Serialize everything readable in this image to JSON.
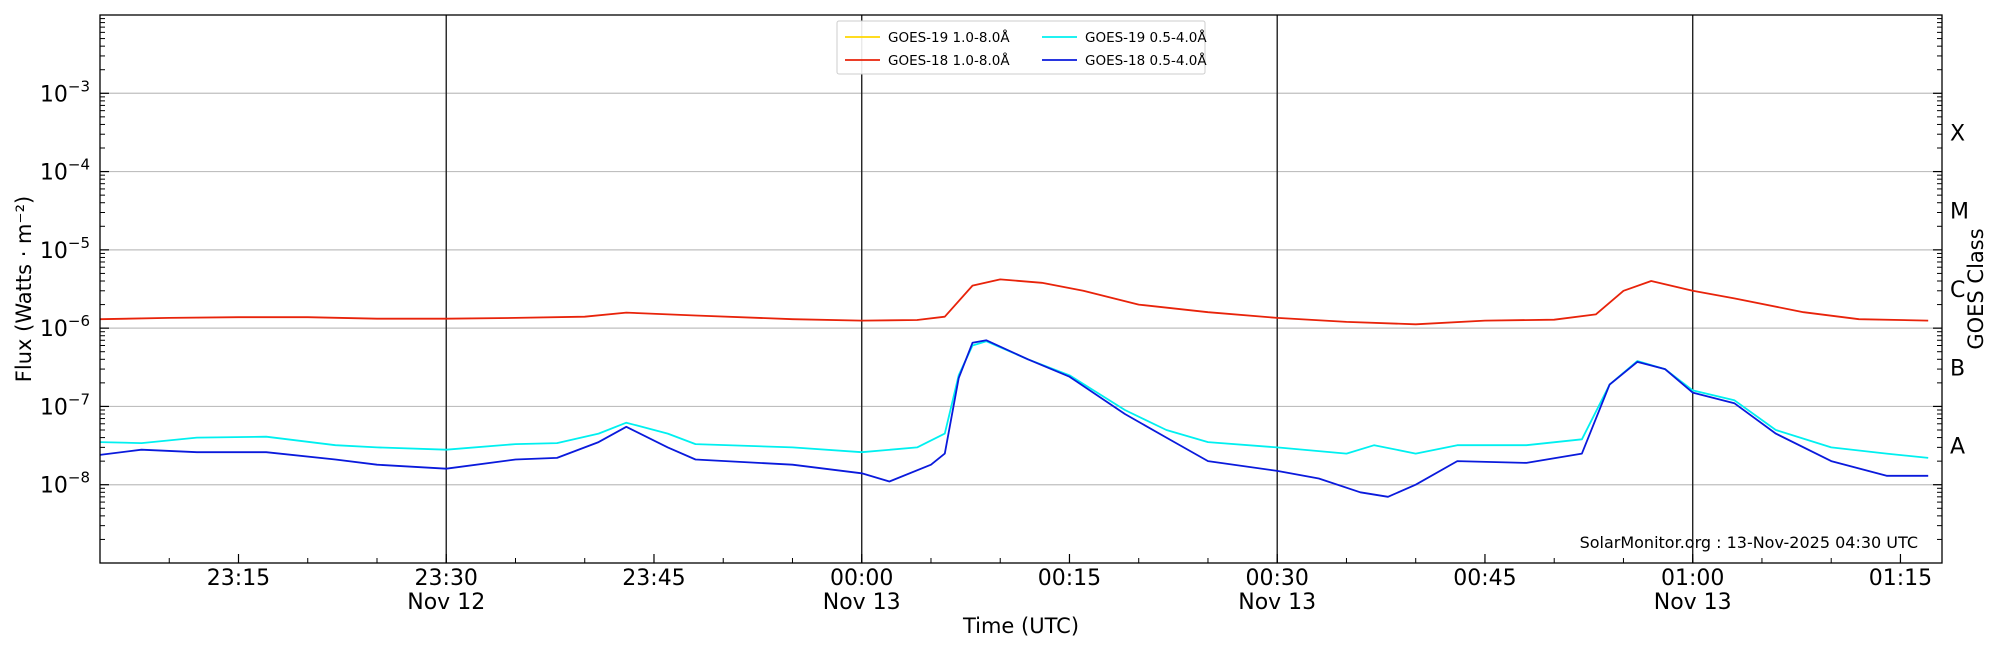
{
  "chart_data": {
    "type": "line",
    "x_range": [
      "23:05",
      "01:18"
    ],
    "xlabel": "Time (UTC)",
    "ylabel": "Flux (Watts · m⁻²)",
    "ylabel_right": "GOES Class",
    "yscale": "log",
    "ylim": [
      1e-09,
      0.01
    ],
    "y_ticks": [
      {
        "value": 1e-08,
        "base": "10",
        "exp": "−8"
      },
      {
        "value": 1e-07,
        "base": "10",
        "exp": "−7"
      },
      {
        "value": 1e-06,
        "base": "10",
        "exp": "−6"
      },
      {
        "value": 1e-05,
        "base": "10",
        "exp": "−5"
      },
      {
        "value": 0.0001,
        "base": "10",
        "exp": "−4"
      },
      {
        "value": 0.001,
        "base": "10",
        "exp": "−3"
      }
    ],
    "x_ticks": [
      {
        "t": "23:15",
        "label": "23:15",
        "date": ""
      },
      {
        "t": "23:30",
        "label": "23:30",
        "date": "Nov 12"
      },
      {
        "t": "23:45",
        "label": "23:45",
        "date": ""
      },
      {
        "t": "00:00",
        "label": "00:00",
        "date": "Nov 13"
      },
      {
        "t": "00:15",
        "label": "00:15",
        "date": ""
      },
      {
        "t": "00:30",
        "label": "00:30",
        "date": "Nov 13"
      },
      {
        "t": "00:45",
        "label": "00:45",
        "date": ""
      },
      {
        "t": "01:00",
        "label": "01:00",
        "date": "Nov 13"
      },
      {
        "t": "01:15",
        "label": "01:15",
        "date": ""
      }
    ],
    "vertical_lines": [
      "23:30",
      "00:00",
      "00:30",
      "01:00"
    ],
    "goes_classes": [
      {
        "label": "A",
        "value": 3.16e-08
      },
      {
        "label": "B",
        "value": 3.16e-07
      },
      {
        "label": "C",
        "value": 3.16e-06
      },
      {
        "label": "M",
        "value": 3.16e-05
      },
      {
        "label": "X",
        "value": 0.000316
      }
    ],
    "grid": "horizontal",
    "legend": {
      "placement": "top-center",
      "columns": 2
    },
    "series": [
      {
        "name": "GOES-19 1.0-8.0Å",
        "color": "#ffd700",
        "points": []
      },
      {
        "name": "GOES-18 1.0-8.0Å",
        "color": "#e8230a",
        "points": [
          [
            "23:05",
            1.3e-06
          ],
          [
            "23:10",
            1.35e-06
          ],
          [
            "23:15",
            1.38e-06
          ],
          [
            "23:20",
            1.38e-06
          ],
          [
            "23:25",
            1.32e-06
          ],
          [
            "23:30",
            1.32e-06
          ],
          [
            "23:35",
            1.35e-06
          ],
          [
            "23:40",
            1.4e-06
          ],
          [
            "23:43",
            1.58e-06
          ],
          [
            "23:48",
            1.45e-06
          ],
          [
            "23:55",
            1.3e-06
          ],
          [
            "00:00",
            1.25e-06
          ],
          [
            "00:04",
            1.27e-06
          ],
          [
            "00:06",
            1.4e-06
          ],
          [
            "00:08",
            3.5e-06
          ],
          [
            "00:10",
            4.2e-06
          ],
          [
            "00:13",
            3.8e-06
          ],
          [
            "00:16",
            3e-06
          ],
          [
            "00:20",
            2e-06
          ],
          [
            "00:25",
            1.6e-06
          ],
          [
            "00:30",
            1.35e-06
          ],
          [
            "00:35",
            1.2e-06
          ],
          [
            "00:40",
            1.12e-06
          ],
          [
            "00:45",
            1.25e-06
          ],
          [
            "00:50",
            1.28e-06
          ],
          [
            "00:53",
            1.5e-06
          ],
          [
            "00:55",
            3e-06
          ],
          [
            "00:57",
            4e-06
          ],
          [
            "01:00",
            3e-06
          ],
          [
            "01:03",
            2.4e-06
          ],
          [
            "01:08",
            1.6e-06
          ],
          [
            "01:12",
            1.3e-06
          ],
          [
            "01:17",
            1.25e-06
          ]
        ]
      },
      {
        "name": "GOES-19 0.5-4.0Å",
        "color": "#00f0f0",
        "points": [
          [
            "23:05",
            3.5e-08
          ],
          [
            "23:08",
            3.4e-08
          ],
          [
            "23:12",
            4e-08
          ],
          [
            "23:17",
            4.1e-08
          ],
          [
            "23:22",
            3.2e-08
          ],
          [
            "23:25",
            3e-08
          ],
          [
            "23:30",
            2.8e-08
          ],
          [
            "23:35",
            3.3e-08
          ],
          [
            "23:38",
            3.4e-08
          ],
          [
            "23:41",
            4.5e-08
          ],
          [
            "23:43",
            6.2e-08
          ],
          [
            "23:46",
            4.5e-08
          ],
          [
            "23:48",
            3.3e-08
          ],
          [
            "23:55",
            3e-08
          ],
          [
            "00:00",
            2.6e-08
          ],
          [
            "00:04",
            3e-08
          ],
          [
            "00:06",
            4.5e-08
          ],
          [
            "00:07",
            2.5e-07
          ],
          [
            "00:08",
            6e-07
          ],
          [
            "00:09",
            6.8e-07
          ],
          [
            "00:12",
            4e-07
          ],
          [
            "00:15",
            2.5e-07
          ],
          [
            "00:19",
            9e-08
          ],
          [
            "00:22",
            5e-08
          ],
          [
            "00:25",
            3.5e-08
          ],
          [
            "00:30",
            3e-08
          ],
          [
            "00:35",
            2.5e-08
          ],
          [
            "00:37",
            3.2e-08
          ],
          [
            "00:40",
            2.5e-08
          ],
          [
            "00:43",
            3.2e-08
          ],
          [
            "00:48",
            3.2e-08
          ],
          [
            "00:52",
            3.8e-08
          ],
          [
            "00:54",
            1.9e-07
          ],
          [
            "00:56",
            3.8e-07
          ],
          [
            "00:58",
            3e-07
          ],
          [
            "01:00",
            1.6e-07
          ],
          [
            "01:03",
            1.2e-07
          ],
          [
            "01:06",
            5e-08
          ],
          [
            "01:10",
            3e-08
          ],
          [
            "01:14",
            2.5e-08
          ],
          [
            "01:17",
            2.2e-08
          ]
        ]
      },
      {
        "name": "GOES-18 0.5-4.0Å",
        "color": "#0a1adc",
        "points": [
          [
            "23:05",
            2.4e-08
          ],
          [
            "23:08",
            2.8e-08
          ],
          [
            "23:12",
            2.6e-08
          ],
          [
            "23:17",
            2.6e-08
          ],
          [
            "23:22",
            2.1e-08
          ],
          [
            "23:25",
            1.8e-08
          ],
          [
            "23:30",
            1.6e-08
          ],
          [
            "23:35",
            2.1e-08
          ],
          [
            "23:38",
            2.2e-08
          ],
          [
            "23:41",
            3.5e-08
          ],
          [
            "23:43",
            5.5e-08
          ],
          [
            "23:46",
            3e-08
          ],
          [
            "23:48",
            2.1e-08
          ],
          [
            "23:55",
            1.8e-08
          ],
          [
            "00:00",
            1.4e-08
          ],
          [
            "00:02",
            1.1e-08
          ],
          [
            "00:05",
            1.8e-08
          ],
          [
            "00:06",
            2.5e-08
          ],
          [
            "00:07",
            2.3e-07
          ],
          [
            "00:08",
            6.5e-07
          ],
          [
            "00:09",
            7e-07
          ],
          [
            "00:12",
            4e-07
          ],
          [
            "00:15",
            2.4e-07
          ],
          [
            "00:19",
            8e-08
          ],
          [
            "00:22",
            4e-08
          ],
          [
            "00:25",
            2e-08
          ],
          [
            "00:30",
            1.5e-08
          ],
          [
            "00:33",
            1.2e-08
          ],
          [
            "00:36",
            8e-09
          ],
          [
            "00:38",
            7e-09
          ],
          [
            "00:40",
            1e-08
          ],
          [
            "00:43",
            2e-08
          ],
          [
            "00:48",
            1.9e-08
          ],
          [
            "00:52",
            2.5e-08
          ],
          [
            "00:54",
            1.9e-07
          ],
          [
            "00:56",
            3.7e-07
          ],
          [
            "00:58",
            3e-07
          ],
          [
            "01:00",
            1.5e-07
          ],
          [
            "01:03",
            1.1e-07
          ],
          [
            "01:06",
            4.5e-08
          ],
          [
            "01:10",
            2e-08
          ],
          [
            "01:14",
            1.3e-08
          ],
          [
            "01:17",
            1.3e-08
          ]
        ]
      }
    ],
    "watermark": "SolarMonitor.org : 13-Nov-2025 04:30 UTC"
  }
}
